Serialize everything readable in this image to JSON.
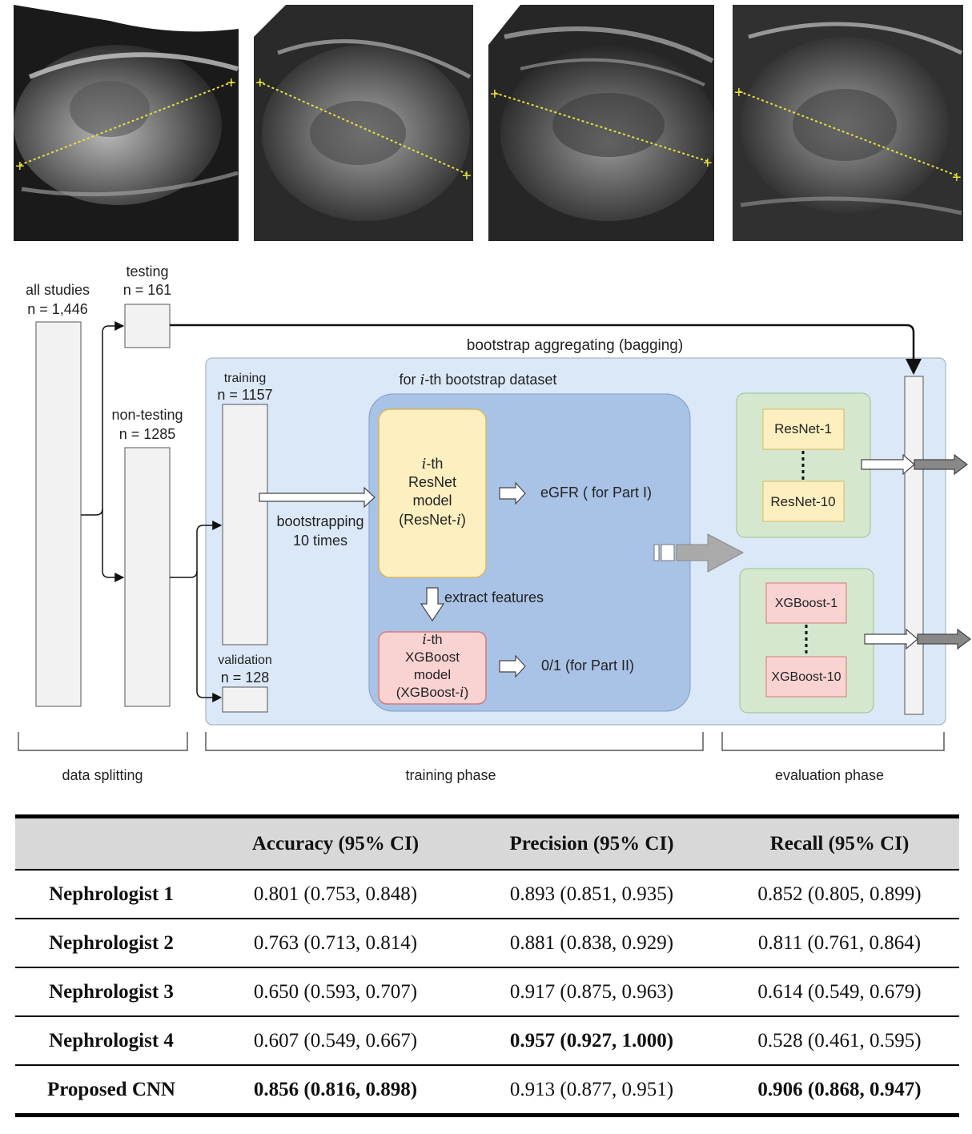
{
  "ultrasound_images": [
    {
      "name": "ultrasound-image-1"
    },
    {
      "name": "ultrasound-image-2"
    },
    {
      "name": "ultrasound-image-3"
    },
    {
      "name": "ultrasound-image-4"
    }
  ],
  "diagram": {
    "all_studies": {
      "label": "all studies",
      "n": "n = 1,446"
    },
    "testing": {
      "label": "testing",
      "n": "n = 161"
    },
    "non_testing": {
      "label": "non-testing",
      "n": "n = 1285"
    },
    "training": {
      "label": "training",
      "n": "n = 1157"
    },
    "validation": {
      "label": "validation",
      "n": "n = 128"
    },
    "bagging_label": "bootstrap aggregating (bagging)",
    "bootstrap_header_prefix": "for ",
    "bootstrap_header_i": "i",
    "bootstrap_header_suffix": "-th bootstrap dataset",
    "bootstrapping": {
      "line1": "bootstrapping",
      "line2": "10 times"
    },
    "resnet_model": {
      "i": "i",
      "th": "-th",
      "line2": "ResNet",
      "line3": "model",
      "line4_prefix": "(ResNet-",
      "line4_i": "i",
      "line4_suffix": ")"
    },
    "xgboost_model": {
      "i": "i",
      "th": "-th",
      "line2": "XGBoost",
      "line3": "model",
      "line4_prefix": "(XGBoost-",
      "line4_i": "i",
      "line4_suffix": ")"
    },
    "egfr_output": "eGFR ( for Part I)",
    "binary_output": "0/1 (for Part II)",
    "extract_features": "extract features",
    "resnet_first": "ResNet-1",
    "resnet_last": "ResNet-10",
    "xgboost_first": "XGBoost-1",
    "xgboost_last": "XGBoost-10",
    "phases": {
      "data_splitting": "data splitting",
      "training": "training phase",
      "evaluation": "evaluation phase"
    },
    "colors": {
      "phase_box": "#dbe8f8",
      "bootstrap_box": "#a9c3e6",
      "resnet_box": "#fdefc0",
      "xgboost_box": "#f9d2d2",
      "ensemble_group": "#d5e8cf",
      "data_bar": "#f2f2f2"
    }
  },
  "table": {
    "headers": [
      "",
      "Accuracy (95% CI)",
      "Precision (95% CI)",
      "Recall (95% CI)"
    ],
    "rows": [
      {
        "name": "Nephrologist 1",
        "accuracy": "0.801 (0.753, 0.848)",
        "precision": "0.893 (0.851, 0.935)",
        "recall": "0.852 (0.805, 0.899)"
      },
      {
        "name": "Nephrologist 2",
        "accuracy": "0.763 (0.713, 0.814)",
        "precision": "0.881 (0.838, 0.929)",
        "recall": "0.811 (0.761, 0.864)"
      },
      {
        "name": "Nephrologist 3",
        "accuracy": "0.650 (0.593, 0.707)",
        "precision": "0.917 (0.875, 0.963)",
        "recall": "0.614 (0.549, 0.679)"
      },
      {
        "name": "Nephrologist 4",
        "accuracy": "0.607 (0.549, 0.667)",
        "precision": "0.957 (0.927, 1.000)",
        "recall": "0.528 (0.461, 0.595)"
      },
      {
        "name": "Proposed CNN",
        "accuracy": "0.856 (0.816, 0.898)",
        "precision": "0.913 (0.877, 0.951)",
        "recall": "0.906 (0.868, 0.947)"
      }
    ],
    "bold_cells": [
      "rows.3.precision",
      "rows.4.accuracy",
      "rows.4.recall"
    ]
  }
}
